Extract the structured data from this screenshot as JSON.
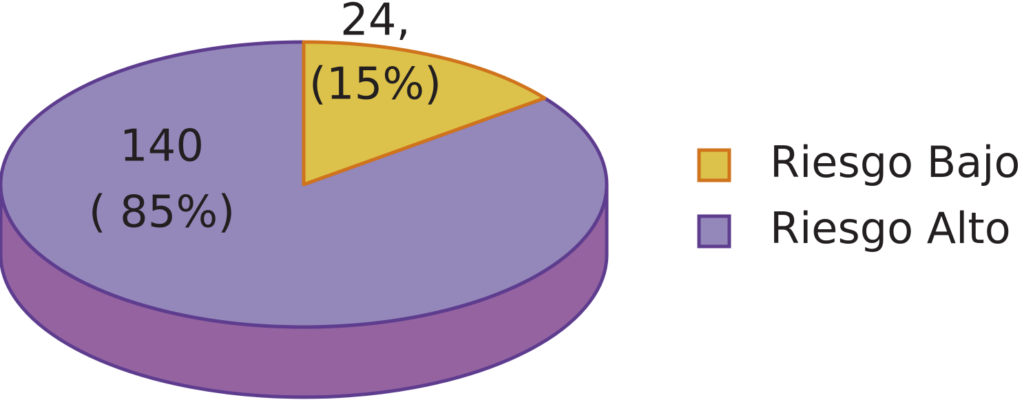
{
  "chart_data": {
    "type": "pie",
    "categories": [
      "Riesgo Bajo",
      "Riesgo Alto"
    ],
    "values": [
      24,
      140
    ],
    "value_labels": [
      [
        "24,",
        "(15%)"
      ],
      [
        "140",
        "( 85%)"
      ]
    ],
    "colors": [
      "#dcc24a",
      "#9488bb"
    ],
    "side_colors": [
      "#c9a83a",
      "#9563a0"
    ],
    "edge_colors": [
      "#d0731d",
      "#5e3d8f"
    ],
    "legend": "right"
  }
}
